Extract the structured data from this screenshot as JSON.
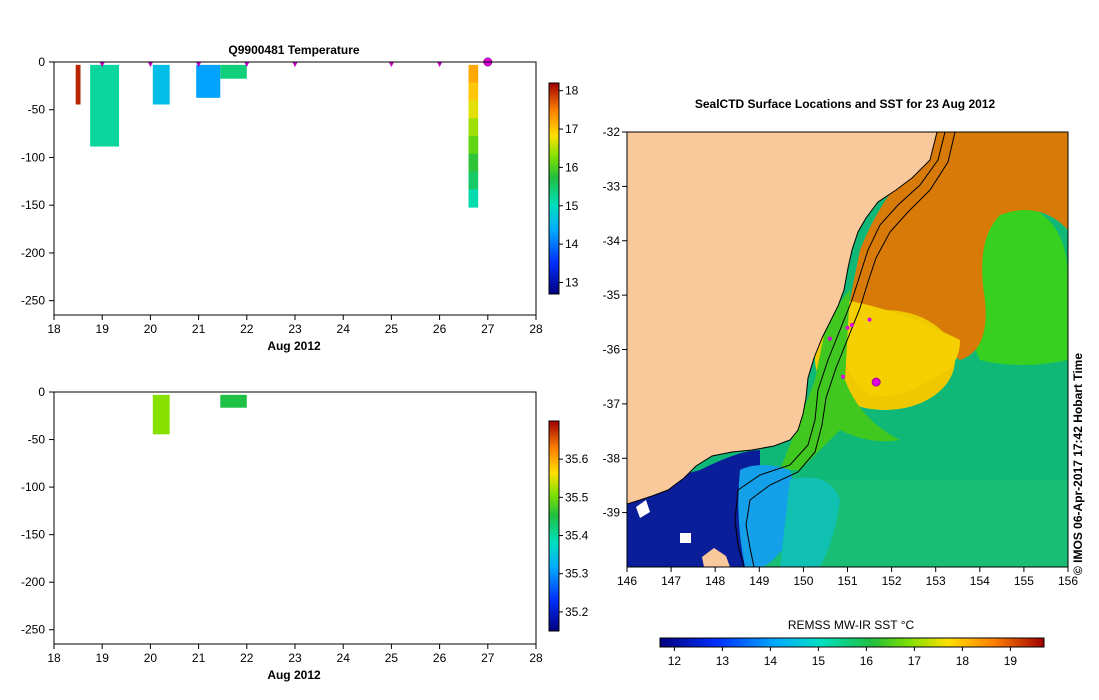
{
  "chart_data": [
    {
      "type": "bar",
      "id": "temperature-depth-time",
      "title": "Q9900481  Temperature",
      "xlabel": "Aug 2012",
      "ylabel": "",
      "xlim": [
        18,
        28
      ],
      "ylim": [
        -265,
        0
      ],
      "xticks": [
        "18",
        "19",
        "20",
        "21",
        "22",
        "23",
        "24",
        "25",
        "26",
        "27",
        "28"
      ],
      "yticks": [
        "0",
        "-50",
        "-100",
        "-150",
        "-200",
        "-250"
      ],
      "profiles": [
        {
          "x0": 18.45,
          "x1": 18.55,
          "depth": 44,
          "values": [
            18.0
          ]
        },
        {
          "x0": 18.75,
          "x1": 19.35,
          "depth": 88,
          "values": [
            15.2
          ]
        },
        {
          "x0": 20.05,
          "x1": 20.4,
          "depth": 44,
          "values": [
            14.6
          ]
        },
        {
          "x0": 20.95,
          "x1": 21.45,
          "depth": 37,
          "values": [
            14.3
          ]
        },
        {
          "x0": 21.45,
          "x1": 22.0,
          "depth": 17,
          "values": [
            15.4
          ]
        },
        {
          "x0": 26.6,
          "x1": 26.8,
          "depth": 152,
          "values": [
            17.2,
            17.0,
            16.7,
            16.4,
            16.1,
            15.8,
            15.5,
            15.1
          ]
        }
      ],
      "surface_markers": [
        19.0,
        20.0,
        21.0,
        22.0,
        23.0,
        25.0,
        26.0
      ],
      "highlight_marker": 27.0,
      "colorbar": {
        "min": 12.7,
        "max": 18.2,
        "ticks": [
          "13",
          "14",
          "15",
          "16",
          "17",
          "18"
        ]
      }
    },
    {
      "type": "bar",
      "id": "salinity-depth-time",
      "title": "",
      "xlabel": "Aug 2012",
      "ylabel": "",
      "xlim": [
        18,
        28
      ],
      "ylim": [
        -265,
        0
      ],
      "xticks": [
        "18",
        "19",
        "20",
        "21",
        "22",
        "23",
        "24",
        "25",
        "26",
        "27",
        "28"
      ],
      "yticks": [
        "0",
        "-50",
        "-100",
        "-150",
        "-200",
        "-250"
      ],
      "profiles": [
        {
          "x0": 20.05,
          "x1": 20.4,
          "depth": 44,
          "values": [
            35.51
          ]
        },
        {
          "x0": 21.45,
          "x1": 22.0,
          "depth": 16,
          "values": [
            35.45
          ]
        }
      ],
      "colorbar": {
        "min": 35.15,
        "max": 35.7,
        "ticks": [
          "35.2",
          "35.3",
          "35.4",
          "35.5",
          "35.6"
        ]
      }
    },
    {
      "type": "heatmap",
      "id": "sst-map",
      "title": "SealCTD Surface Locations and SST for 23 Aug 2012",
      "xlim": [
        146,
        156
      ],
      "ylim": [
        -40,
        -32
      ],
      "xticks": [
        "146",
        "147",
        "148",
        "149",
        "150",
        "151",
        "152",
        "153",
        "154",
        "155",
        "156"
      ],
      "yticks": [
        "-32",
        "-33",
        "-34",
        "-35",
        "-36",
        "-37",
        "-38",
        "-39"
      ],
      "colorbar_label": "REMSS MW-IR SST °C",
      "colorbar": {
        "min": 11.7,
        "max": 19.7,
        "ticks": [
          "12",
          "13",
          "14",
          "15",
          "16",
          "17",
          "18",
          "19"
        ]
      },
      "locations": [
        {
          "lon": 150.6,
          "lat": -35.8
        },
        {
          "lon": 151.0,
          "lat": -35.6
        },
        {
          "lon": 151.1,
          "lat": -35.55
        },
        {
          "lon": 151.5,
          "lat": -35.45
        },
        {
          "lon": 150.9,
          "lat": -36.5
        }
      ],
      "highlight_location": {
        "lon": 151.65,
        "lat": -36.6
      },
      "credit": "© IMOS 06-Apr-2017 17:42 Hobart Time"
    }
  ]
}
